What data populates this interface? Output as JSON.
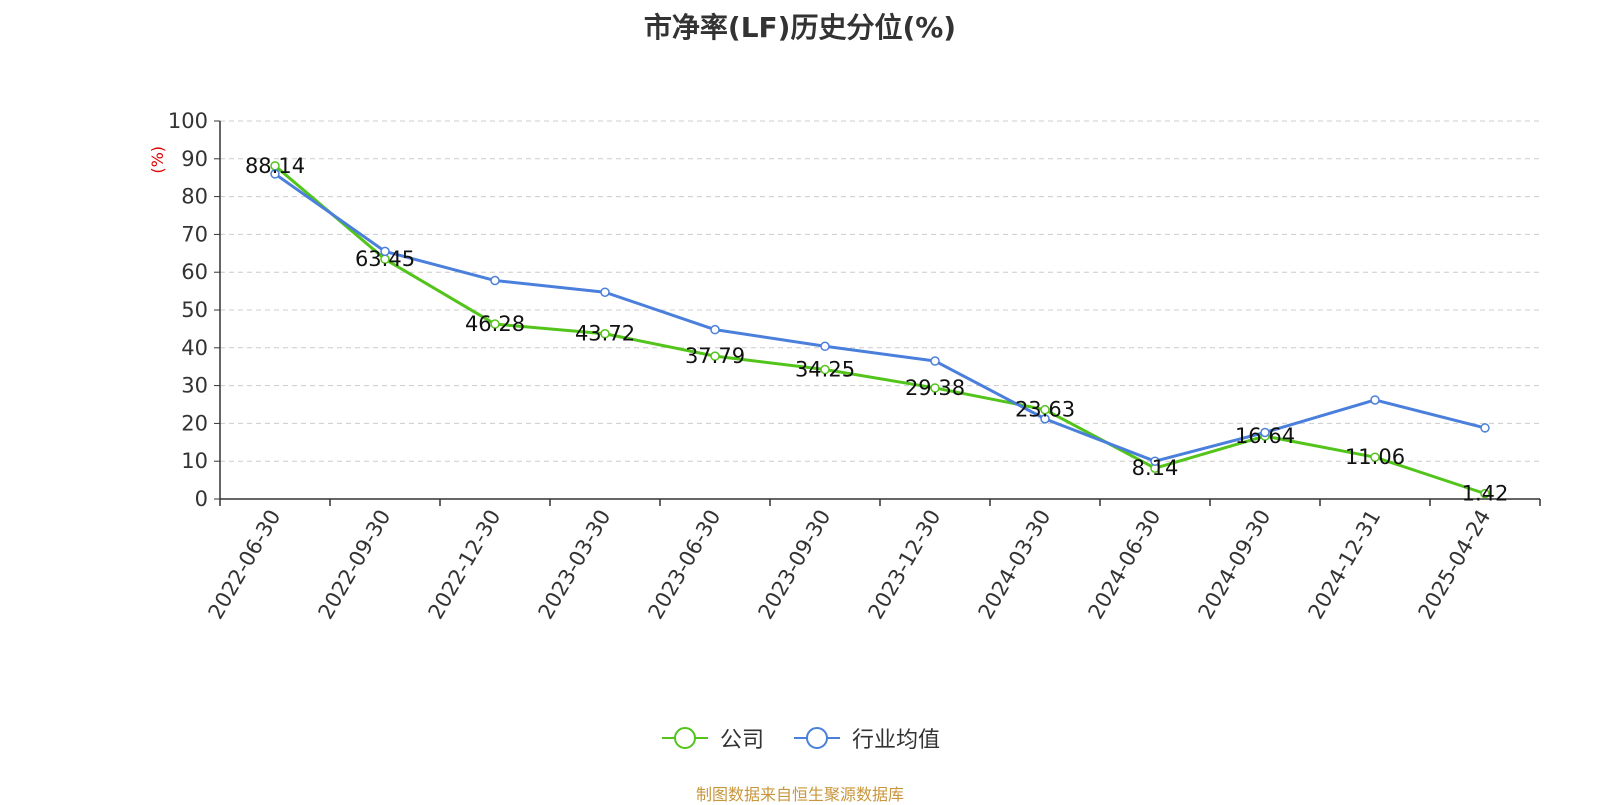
{
  "chart_data": {
    "type": "line",
    "title": "市净率(LF)历史分位(%)",
    "ylabel": "(%)",
    "ylim": [
      0,
      100
    ],
    "yticks": [
      0,
      10,
      20,
      30,
      40,
      50,
      60,
      70,
      80,
      90,
      100
    ],
    "grid": true,
    "legend_position": "bottom",
    "categories": [
      "2022-06-30",
      "2022-09-30",
      "2022-12-30",
      "2023-03-30",
      "2023-06-30",
      "2023-09-30",
      "2023-12-30",
      "2024-03-30",
      "2024-06-30",
      "2024-09-30",
      "2024-12-31",
      "2025-04-24"
    ],
    "series": [
      {
        "name": "公司",
        "color": "#52c41a",
        "values": [
          88.14,
          63.45,
          46.28,
          43.72,
          37.79,
          34.25,
          29.38,
          23.63,
          8.14,
          16.64,
          11.06,
          1.42
        ],
        "labels": [
          "88.14",
          "63.45",
          "46.28",
          "43.72",
          "37.79",
          "34.25",
          "29.38",
          "23.63",
          "8.14",
          "16.64",
          "11.06",
          "1.42"
        ]
      },
      {
        "name": "行业均值",
        "color": "#4a7fdb",
        "values": [
          86.0,
          65.5,
          57.8,
          54.7,
          44.8,
          40.4,
          36.5,
          21.2,
          10.0,
          17.6,
          26.2,
          18.8
        ]
      }
    ]
  },
  "source": "制图数据来自恒生聚源数据库"
}
